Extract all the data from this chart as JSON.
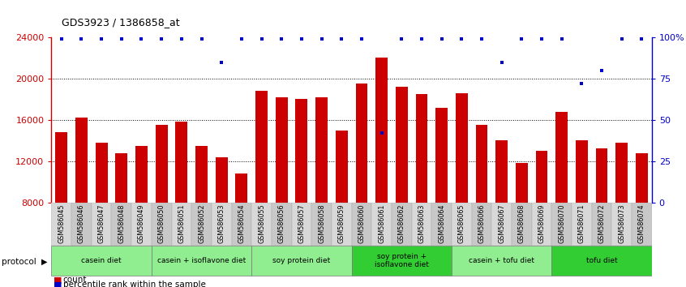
{
  "title": "GDS3923 / 1386858_at",
  "samples": [
    "GSM586045",
    "GSM586046",
    "GSM586047",
    "GSM586048",
    "GSM586049",
    "GSM586050",
    "GSM586051",
    "GSM586052",
    "GSM586053",
    "GSM586054",
    "GSM586055",
    "GSM586056",
    "GSM586057",
    "GSM586058",
    "GSM586059",
    "GSM586060",
    "GSM586061",
    "GSM586062",
    "GSM586063",
    "GSM586064",
    "GSM586065",
    "GSM586066",
    "GSM586067",
    "GSM586068",
    "GSM586069",
    "GSM586070",
    "GSM586071",
    "GSM586072",
    "GSM586073",
    "GSM586074"
  ],
  "counts": [
    14800,
    16200,
    13800,
    12800,
    13500,
    15500,
    15800,
    13500,
    12400,
    10800,
    18800,
    18200,
    18000,
    18200,
    15000,
    19500,
    22000,
    19200,
    18500,
    17200,
    18600,
    15500,
    14000,
    11800,
    13000,
    16800,
    14000,
    13200,
    13800,
    12800
  ],
  "percentile_ranks": [
    99,
    99,
    99,
    99,
    99,
    99,
    99,
    99,
    85,
    99,
    99,
    99,
    99,
    99,
    99,
    99,
    42,
    99,
    99,
    99,
    99,
    99,
    85,
    99,
    99,
    99,
    72,
    80,
    99,
    99
  ],
  "groups": [
    {
      "label": "casein diet",
      "start": 0,
      "end": 5,
      "color": "#90EE90"
    },
    {
      "label": "casein + isoflavone diet",
      "start": 5,
      "end": 10,
      "color": "#90EE90"
    },
    {
      "label": "soy protein diet",
      "start": 10,
      "end": 15,
      "color": "#90EE90"
    },
    {
      "label": "soy protein +\nisoflavone diet",
      "start": 15,
      "end": 20,
      "color": "#32CD32"
    },
    {
      "label": "casein + tofu diet",
      "start": 20,
      "end": 25,
      "color": "#90EE90"
    },
    {
      "label": "tofu diet",
      "start": 25,
      "end": 30,
      "color": "#32CD32"
    }
  ],
  "bar_color": "#CC0000",
  "dot_color": "#0000CC",
  "ylim_left": [
    8000,
    24000
  ],
  "ylim_right": [
    0,
    100
  ],
  "yticks_left": [
    8000,
    12000,
    16000,
    20000,
    24000
  ],
  "yticks_right": [
    0,
    25,
    50,
    75,
    100
  ]
}
